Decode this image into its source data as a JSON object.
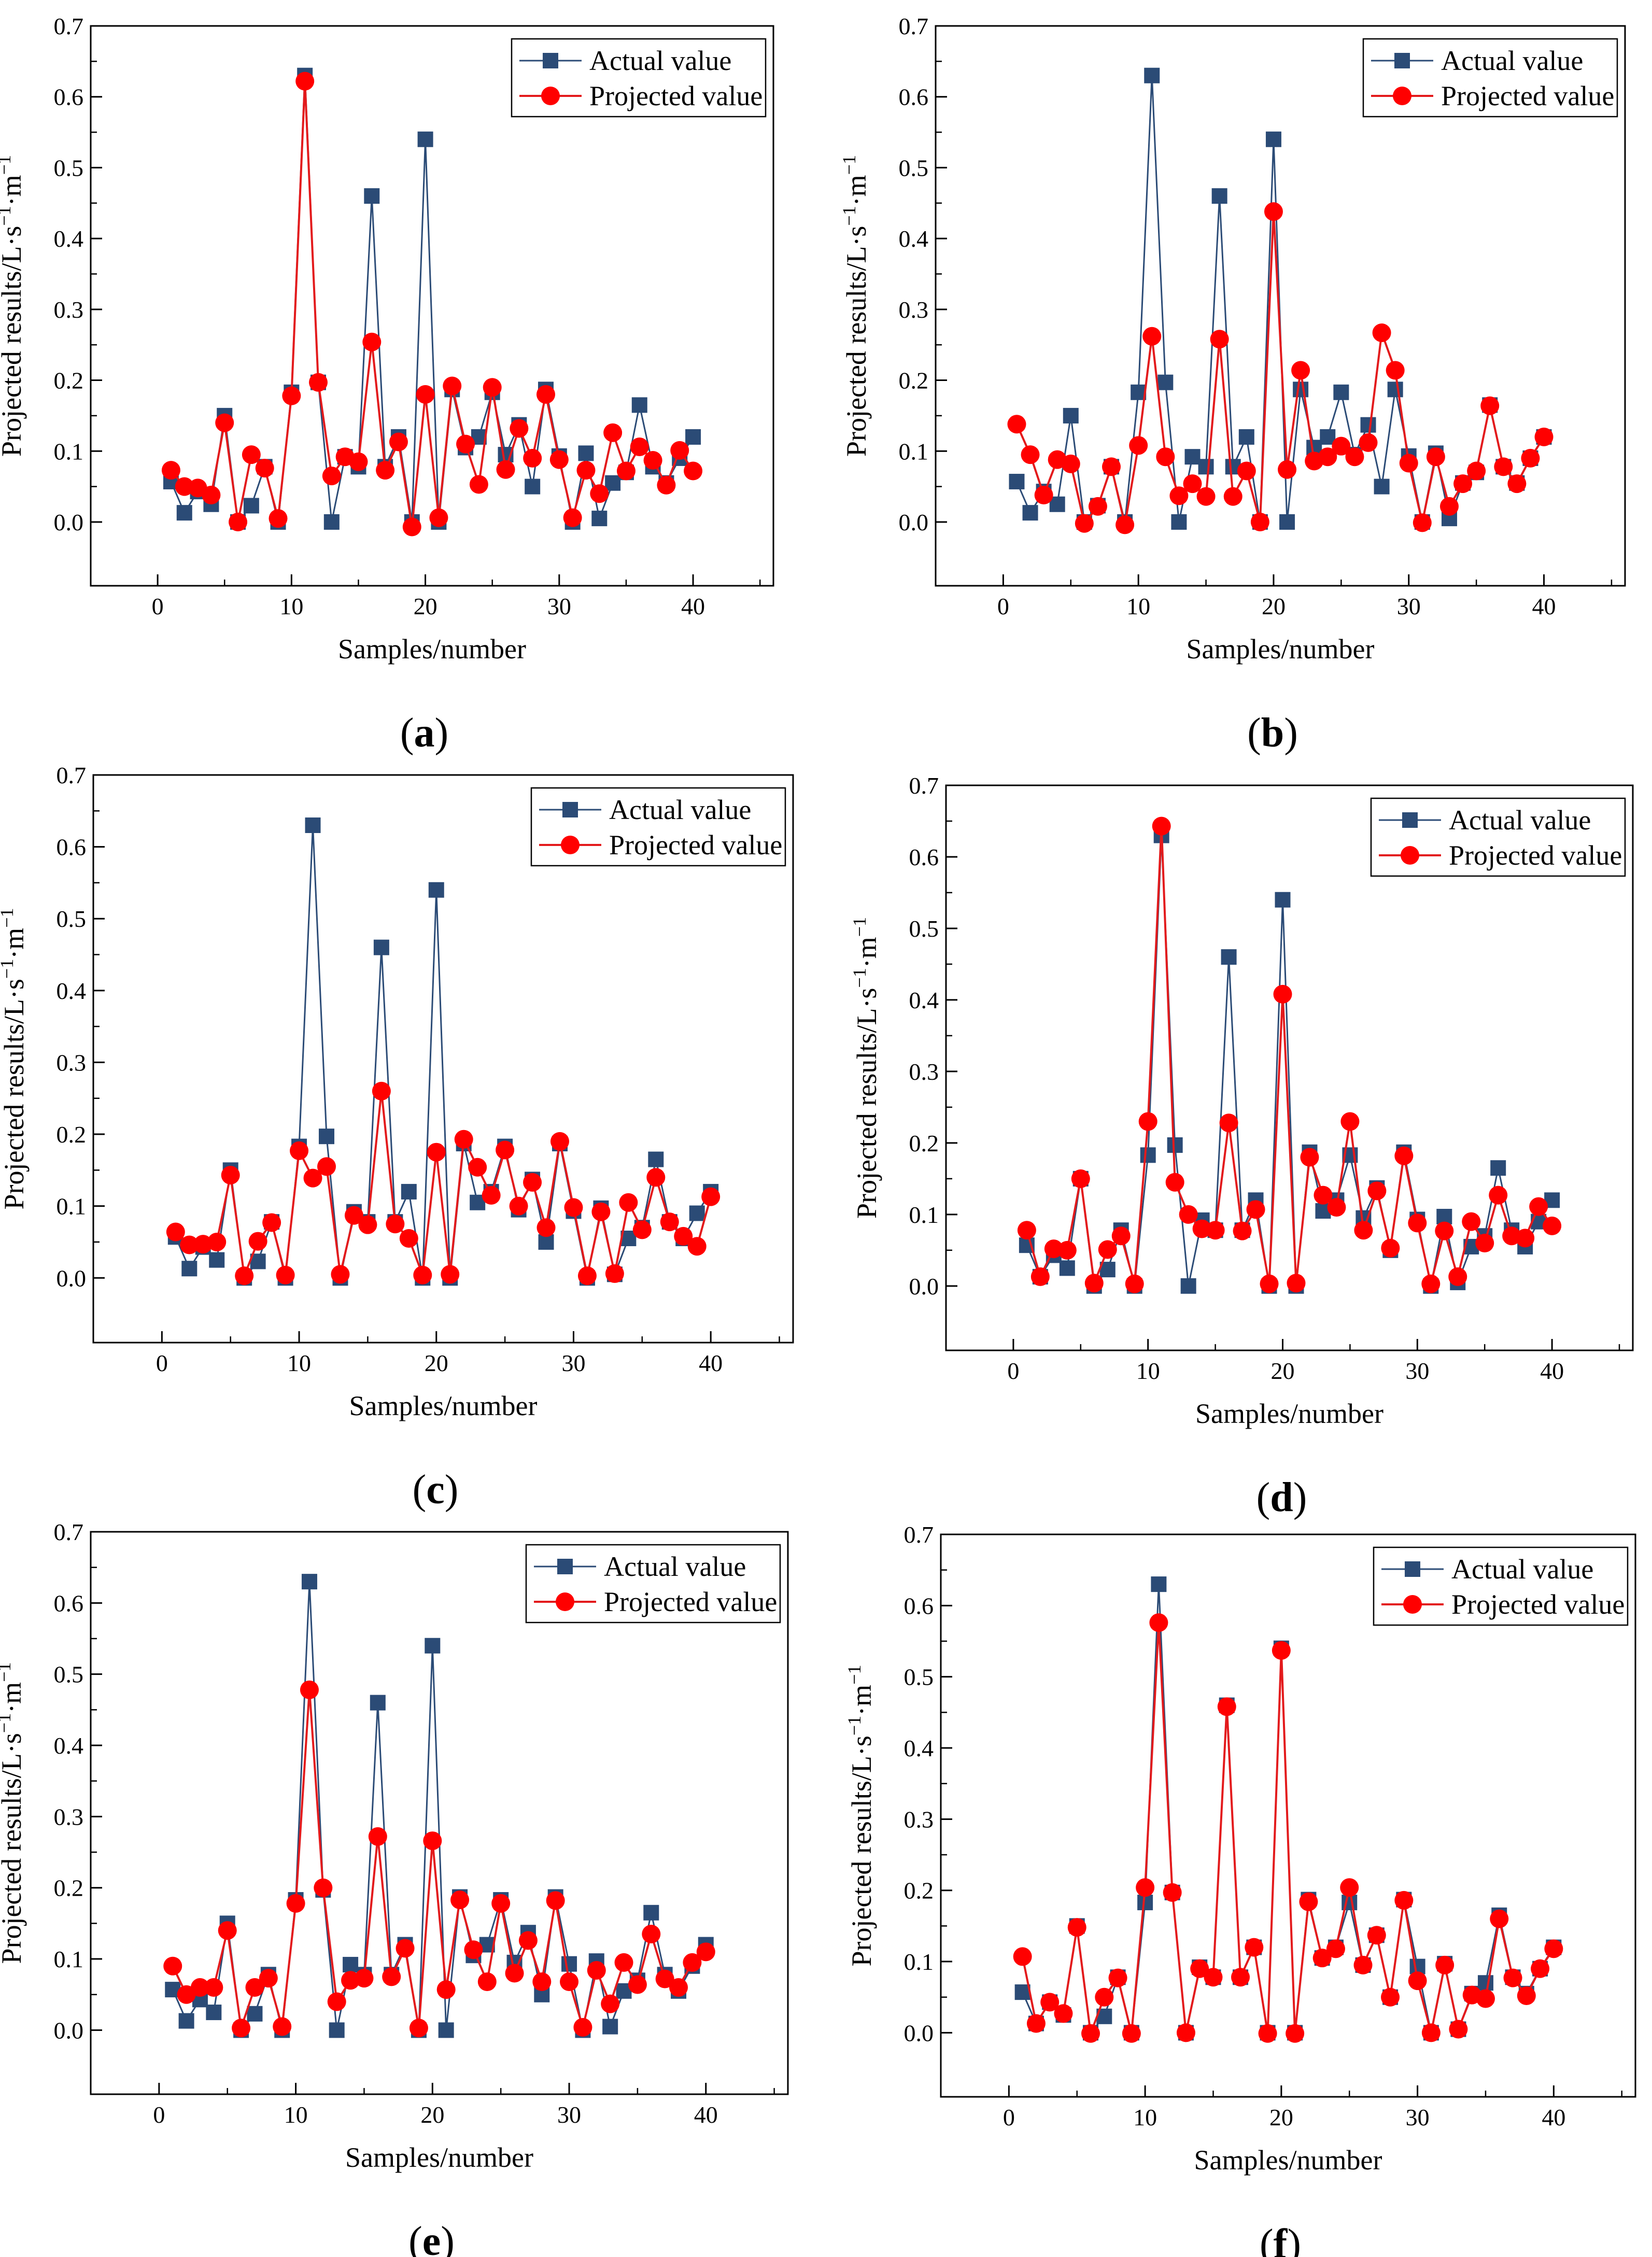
{
  "figure": {
    "title": ""
  },
  "colors": {
    "actual": "#2b4b76",
    "projected": "#ff0000",
    "projected_line": "#e31a1c",
    "axis": "#000000"
  },
  "common": {
    "xlabel": "Samples/number",
    "ylabel": "Projected results/L·s⁻¹·m⁻¹",
    "ylabel_main": "Projected results/L·s",
    "ylabel_sup1": "−1",
    "ylabel_mid": "·m",
    "ylabel_sup2": "−1",
    "legend_actual": "Actual value",
    "legend_projected": "Projected value",
    "xticks": [
      "0",
      "10",
      "20",
      "30",
      "40"
    ],
    "yticks": [
      "0.0",
      "0.1",
      "0.2",
      "0.3",
      "0.4",
      "0.5",
      "0.6",
      "0.7"
    ]
  },
  "panels": [
    {
      "letter": "a"
    },
    {
      "letter": "b"
    },
    {
      "letter": "c"
    },
    {
      "letter": "d"
    },
    {
      "letter": "e"
    },
    {
      "letter": "f"
    }
  ],
  "chart_data": [
    {
      "panel": "a",
      "type": "line",
      "xlabel": "Samples/number",
      "ylabel": "Projected results/L·s⁻¹·m⁻¹",
      "xlim": [
        -5,
        46
      ],
      "ylim": [
        -0.09,
        0.7
      ],
      "legend": "top-right",
      "x": [
        1,
        2,
        3,
        4,
        5,
        6,
        7,
        8,
        9,
        10,
        11,
        12,
        13,
        14,
        15,
        16,
        17,
        18,
        19,
        20,
        21,
        22,
        23,
        24,
        25,
        26,
        27,
        28,
        29,
        30,
        31,
        32,
        33,
        34,
        35,
        36,
        37,
        38,
        39,
        40
      ],
      "series": [
        {
          "name": "Actual value",
          "marker": "square",
          "values": [
            0.057,
            0.013,
            0.043,
            0.025,
            0.15,
            0.0,
            0.023,
            0.078,
            0.0,
            0.183,
            0.63,
            0.197,
            0.0,
            0.092,
            0.078,
            0.46,
            0.078,
            0.12,
            0.0,
            0.54,
            0.0,
            0.187,
            0.105,
            0.12,
            0.183,
            0.095,
            0.137,
            0.05,
            0.187,
            0.093,
            0.0,
            0.097,
            0.005,
            0.055,
            0.07,
            0.165,
            0.078,
            0.055,
            0.09,
            0.12
          ]
        },
        {
          "name": "Projected value",
          "marker": "circle",
          "values": [
            0.073,
            0.05,
            0.048,
            0.038,
            0.14,
            0.0,
            0.095,
            0.076,
            0.005,
            0.178,
            0.622,
            0.197,
            0.065,
            0.092,
            0.085,
            0.254,
            0.073,
            0.113,
            -0.007,
            0.18,
            0.006,
            0.192,
            0.11,
            0.053,
            0.19,
            0.074,
            0.132,
            0.09,
            0.18,
            0.088,
            0.006,
            0.073,
            0.04,
            0.126,
            0.072,
            0.106,
            0.087,
            0.052,
            0.101,
            0.072
          ]
        }
      ]
    },
    {
      "panel": "b",
      "type": "line",
      "xlabel": "Samples/number",
      "ylabel": "Projected results/L·s⁻¹·m⁻¹",
      "xlim": [
        -5,
        46
      ],
      "ylim": [
        -0.09,
        0.7
      ],
      "legend": "top-right",
      "x": [
        1,
        2,
        3,
        4,
        5,
        6,
        7,
        8,
        9,
        10,
        11,
        12,
        13,
        14,
        15,
        16,
        17,
        18,
        19,
        20,
        21,
        22,
        23,
        24,
        25,
        26,
        27,
        28,
        29,
        30,
        31,
        32,
        33,
        34,
        35,
        36,
        37,
        38,
        39,
        40
      ],
      "series": [
        {
          "name": "Actual value",
          "marker": "square",
          "values": [
            0.057,
            0.013,
            0.043,
            0.025,
            0.15,
            0.0,
            0.023,
            0.078,
            0.0,
            0.183,
            0.63,
            0.197,
            0.0,
            0.092,
            0.078,
            0.46,
            0.078,
            0.12,
            0.0,
            0.54,
            0.0,
            0.187,
            0.105,
            0.12,
            0.183,
            0.095,
            0.137,
            0.05,
            0.187,
            0.093,
            0.0,
            0.097,
            0.005,
            0.055,
            0.07,
            0.165,
            0.078,
            0.055,
            0.09,
            0.12
          ]
        },
        {
          "name": "Projected value",
          "marker": "circle",
          "values": [
            0.138,
            0.095,
            0.038,
            0.088,
            0.082,
            -0.002,
            0.022,
            0.078,
            -0.004,
            0.108,
            0.262,
            0.092,
            0.037,
            0.054,
            0.036,
            0.258,
            0.036,
            0.072,
            0.0,
            0.438,
            0.074,
            0.214,
            0.086,
            0.092,
            0.107,
            0.092,
            0.112,
            0.267,
            0.214,
            0.083,
            -0.001,
            0.092,
            0.022,
            0.054,
            0.072,
            0.164,
            0.078,
            0.054,
            0.09,
            0.12
          ]
        }
      ]
    },
    {
      "panel": "c",
      "type": "line",
      "xlabel": "Samples/number",
      "ylabel": "Projected results/L·s⁻¹·m⁻¹",
      "xlim": [
        -5,
        46
      ],
      "ylim": [
        -0.09,
        0.7
      ],
      "legend": "top-right",
      "x": [
        1,
        2,
        3,
        4,
        5,
        6,
        7,
        8,
        9,
        10,
        11,
        12,
        13,
        14,
        15,
        16,
        17,
        18,
        19,
        20,
        21,
        22,
        23,
        24,
        25,
        26,
        27,
        28,
        29,
        30,
        31,
        32,
        33,
        34,
        35,
        36,
        37,
        38,
        39,
        40
      ],
      "series": [
        {
          "name": "Actual value",
          "marker": "square",
          "values": [
            0.057,
            0.013,
            0.043,
            0.025,
            0.15,
            0.0,
            0.023,
            0.078,
            0.0,
            0.183,
            0.63,
            0.197,
            0.0,
            0.092,
            0.078,
            0.46,
            0.078,
            0.12,
            0.0,
            0.54,
            0.0,
            0.187,
            0.105,
            0.12,
            0.183,
            0.095,
            0.137,
            0.05,
            0.187,
            0.093,
            0.0,
            0.097,
            0.005,
            0.055,
            0.07,
            0.165,
            0.078,
            0.055,
            0.09,
            0.12
          ]
        },
        {
          "name": "Projected value",
          "marker": "circle",
          "values": [
            0.064,
            0.046,
            0.047,
            0.05,
            0.143,
            0.003,
            0.051,
            0.077,
            0.004,
            0.177,
            0.139,
            0.155,
            0.005,
            0.087,
            0.074,
            0.26,
            0.075,
            0.055,
            0.004,
            0.175,
            0.005,
            0.193,
            0.154,
            0.115,
            0.178,
            0.1,
            0.133,
            0.07,
            0.19,
            0.098,
            0.003,
            0.092,
            0.006,
            0.105,
            0.067,
            0.14,
            0.078,
            0.058,
            0.044,
            0.113
          ]
        }
      ]
    },
    {
      "panel": "d",
      "type": "line",
      "xlabel": "Samples/number",
      "ylabel": "Projected results/L·s⁻¹·m⁻¹",
      "xlim": [
        -5,
        46
      ],
      "ylim": [
        -0.09,
        0.7
      ],
      "legend": "top-right",
      "x": [
        1,
        2,
        3,
        4,
        5,
        6,
        7,
        8,
        9,
        10,
        11,
        12,
        13,
        14,
        15,
        16,
        17,
        18,
        19,
        20,
        21,
        22,
        23,
        24,
        25,
        26,
        27,
        28,
        29,
        30,
        31,
        32,
        33,
        34,
        35,
        36,
        37,
        38,
        39,
        40
      ],
      "series": [
        {
          "name": "Actual value",
          "marker": "square",
          "values": [
            0.057,
            0.013,
            0.043,
            0.025,
            0.15,
            0.0,
            0.023,
            0.078,
            0.0,
            0.183,
            0.63,
            0.197,
            0.0,
            0.092,
            0.078,
            0.46,
            0.078,
            0.12,
            0.0,
            0.54,
            0.0,
            0.187,
            0.105,
            0.12,
            0.183,
            0.095,
            0.137,
            0.05,
            0.187,
            0.093,
            0.0,
            0.097,
            0.005,
            0.055,
            0.07,
            0.165,
            0.078,
            0.055,
            0.09,
            0.12
          ]
        },
        {
          "name": "Projected value",
          "marker": "circle",
          "values": [
            0.078,
            0.013,
            0.052,
            0.05,
            0.15,
            0.004,
            0.051,
            0.07,
            0.003,
            0.23,
            0.643,
            0.145,
            0.1,
            0.08,
            0.078,
            0.228,
            0.077,
            0.107,
            0.003,
            0.408,
            0.004,
            0.18,
            0.127,
            0.11,
            0.23,
            0.078,
            0.133,
            0.053,
            0.182,
            0.088,
            0.003,
            0.077,
            0.013,
            0.09,
            0.06,
            0.127,
            0.07,
            0.067,
            0.111,
            0.084
          ]
        }
      ]
    },
    {
      "panel": "e",
      "type": "line",
      "xlabel": "Samples/number",
      "ylabel": "Projected results/L·s⁻¹·m⁻¹",
      "xlim": [
        -5,
        46
      ],
      "ylim": [
        -0.09,
        0.7
      ],
      "legend": "top-right",
      "x": [
        1,
        2,
        3,
        4,
        5,
        6,
        7,
        8,
        9,
        10,
        11,
        12,
        13,
        14,
        15,
        16,
        17,
        18,
        19,
        20,
        21,
        22,
        23,
        24,
        25,
        26,
        27,
        28,
        29,
        30,
        31,
        32,
        33,
        34,
        35,
        36,
        37,
        38,
        39,
        40
      ],
      "series": [
        {
          "name": "Actual value",
          "marker": "square",
          "values": [
            0.057,
            0.013,
            0.043,
            0.025,
            0.15,
            0.0,
            0.023,
            0.078,
            0.0,
            0.183,
            0.63,
            0.197,
            0.0,
            0.092,
            0.078,
            0.46,
            0.078,
            0.12,
            0.0,
            0.54,
            0.0,
            0.187,
            0.105,
            0.12,
            0.183,
            0.095,
            0.137,
            0.05,
            0.187,
            0.093,
            0.0,
            0.097,
            0.005,
            0.055,
            0.07,
            0.165,
            0.078,
            0.055,
            0.09,
            0.12
          ]
        },
        {
          "name": "Projected value",
          "marker": "circle",
          "values": [
            0.09,
            0.05,
            0.06,
            0.06,
            0.14,
            0.003,
            0.06,
            0.073,
            0.005,
            0.178,
            0.478,
            0.2,
            0.04,
            0.07,
            0.073,
            0.272,
            0.075,
            0.115,
            0.003,
            0.266,
            0.057,
            0.183,
            0.113,
            0.068,
            0.178,
            0.08,
            0.126,
            0.068,
            0.182,
            0.068,
            0.004,
            0.084,
            0.037,
            0.095,
            0.064,
            0.135,
            0.072,
            0.06,
            0.095,
            0.11
          ]
        }
      ]
    },
    {
      "panel": "f",
      "type": "line",
      "xlabel": "Samples/number",
      "ylabel": "Projected results/L·s⁻¹·m⁻¹",
      "xlim": [
        -5,
        46
      ],
      "ylim": [
        -0.09,
        0.7
      ],
      "legend": "top-right",
      "x": [
        1,
        2,
        3,
        4,
        5,
        6,
        7,
        8,
        9,
        10,
        11,
        12,
        13,
        14,
        15,
        16,
        17,
        18,
        19,
        20,
        21,
        22,
        23,
        24,
        25,
        26,
        27,
        28,
        29,
        30,
        31,
        32,
        33,
        34,
        35,
        36,
        37,
        38,
        39,
        40
      ],
      "series": [
        {
          "name": "Actual value",
          "marker": "square",
          "values": [
            0.057,
            0.013,
            0.043,
            0.025,
            0.15,
            0.0,
            0.023,
            0.078,
            0.0,
            0.183,
            0.63,
            0.197,
            0.0,
            0.092,
            0.078,
            0.46,
            0.078,
            0.12,
            0.0,
            0.54,
            0.0,
            0.187,
            0.105,
            0.12,
            0.183,
            0.095,
            0.137,
            0.05,
            0.187,
            0.093,
            0.0,
            0.097,
            0.005,
            0.055,
            0.07,
            0.165,
            0.078,
            0.055,
            0.09,
            0.12
          ]
        },
        {
          "name": "Projected value",
          "marker": "circle",
          "values": [
            0.107,
            0.013,
            0.043,
            0.027,
            0.148,
            -0.001,
            0.05,
            0.077,
            -0.001,
            0.204,
            0.576,
            0.197,
            0.0,
            0.09,
            0.078,
            0.458,
            0.078,
            0.12,
            -0.001,
            0.537,
            -0.001,
            0.184,
            0.105,
            0.118,
            0.204,
            0.095,
            0.137,
            0.05,
            0.186,
            0.073,
            0.0,
            0.095,
            0.005,
            0.053,
            0.048,
            0.16,
            0.077,
            0.052,
            0.09,
            0.118
          ]
        }
      ]
    }
  ]
}
